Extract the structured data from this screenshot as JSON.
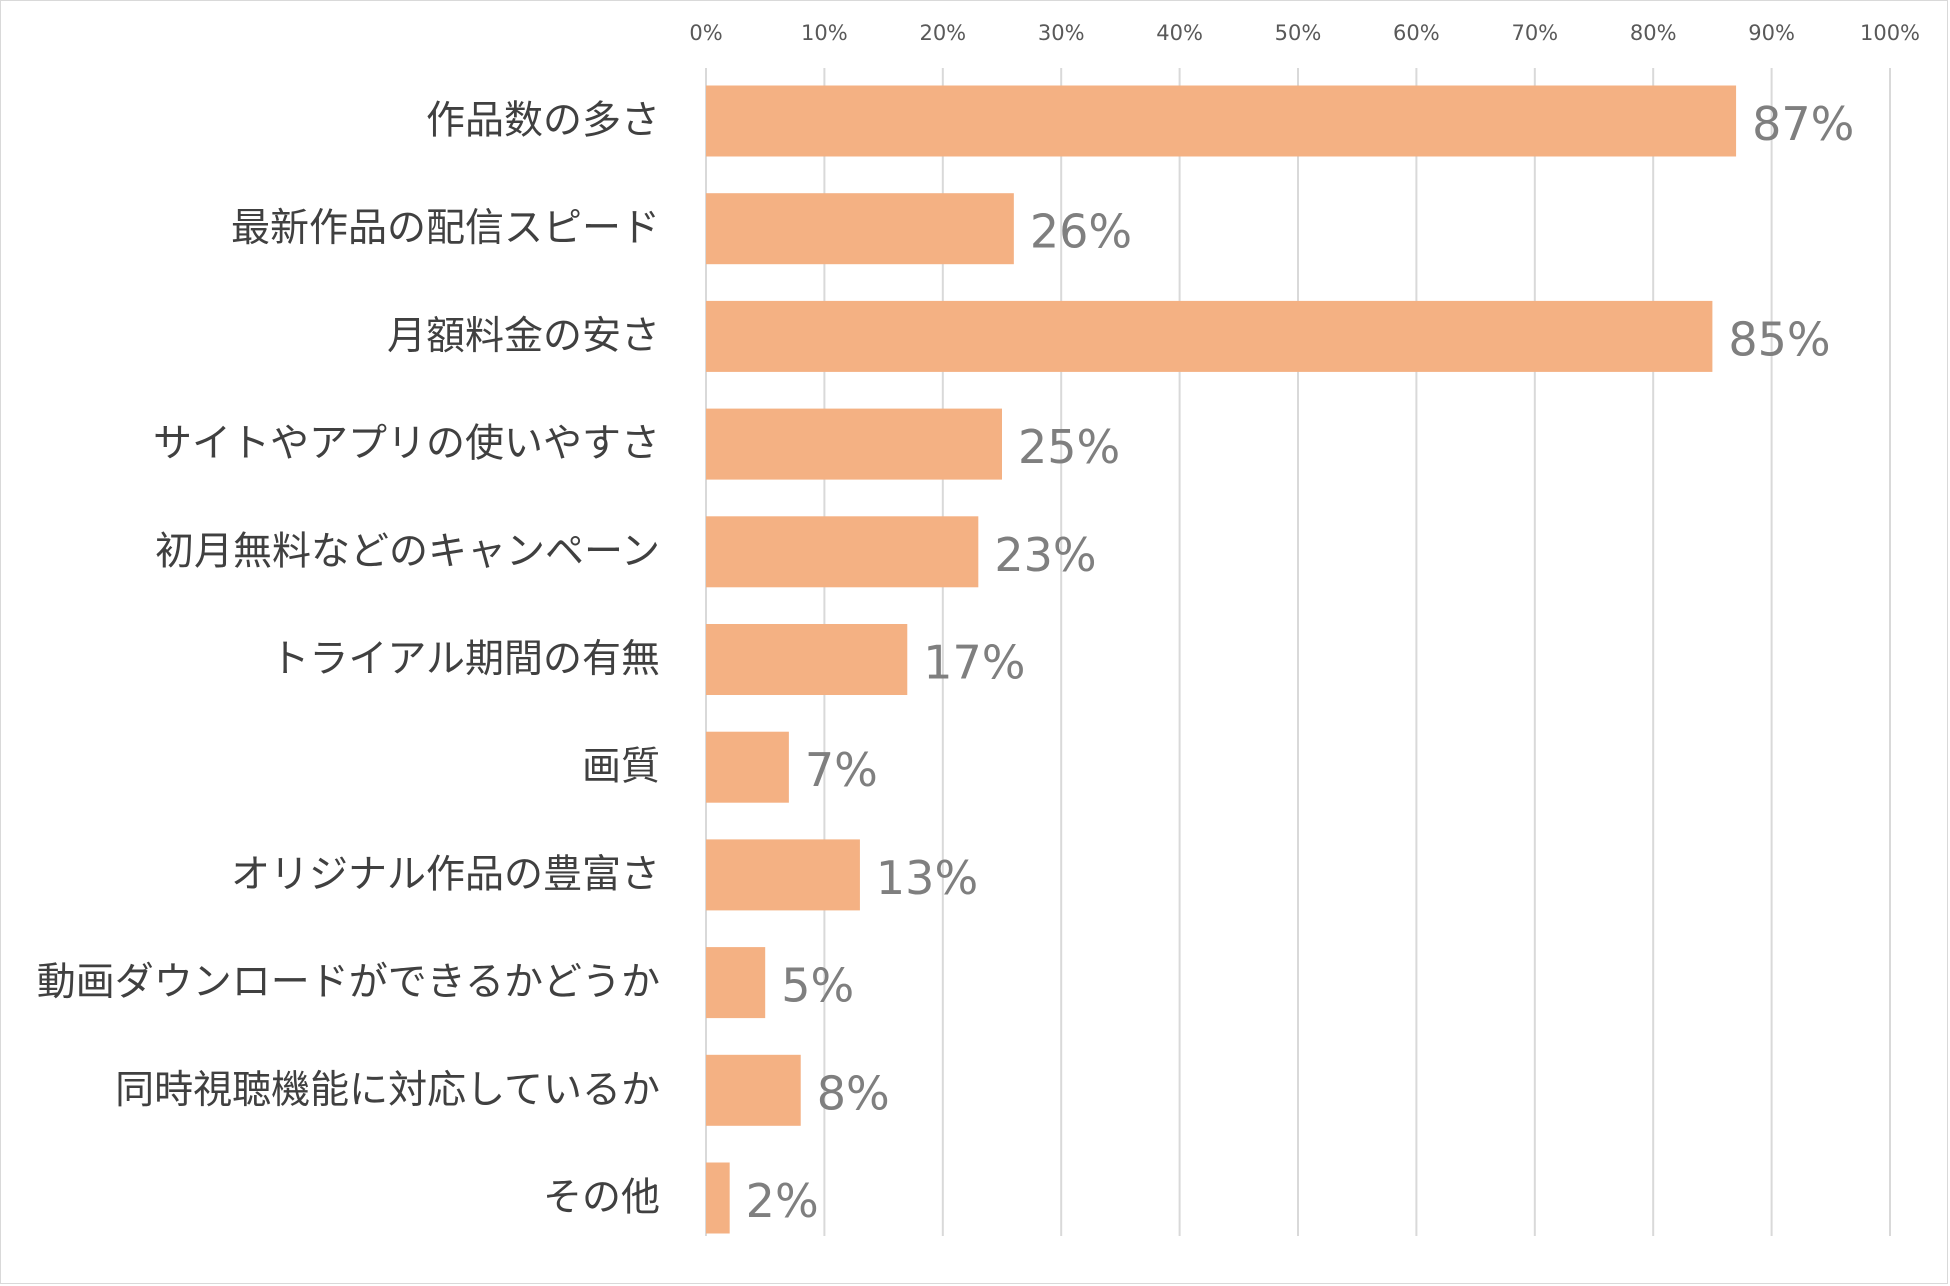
{
  "chart_data": {
    "type": "bar",
    "orientation": "horizontal",
    "categories": [
      "作品数の多さ",
      "最新作品の配信スピード",
      "月額料金の安さ",
      "サイトやアプリの使いやすさ",
      "初月無料などのキャンペーン",
      "トライアル期間の有無",
      "画質",
      "オリジナル作品の豊富さ",
      "動画ダウンロードができるかどうか",
      "同時視聴機能に対応しているか",
      "その他"
    ],
    "values": [
      87,
      26,
      85,
      25,
      23,
      17,
      7,
      13,
      5,
      8,
      2
    ],
    "data_labels": [
      "87%",
      "26%",
      "85%",
      "25%",
      "23%",
      "17%",
      "7%",
      "13%",
      "5%",
      "8%",
      "2%"
    ],
    "xlim": [
      0,
      100
    ],
    "x_ticks": [
      "0%",
      "10%",
      "20%",
      "30%",
      "40%",
      "50%",
      "60%",
      "70%",
      "80%",
      "90%",
      "100%"
    ],
    "x_axis_position": "top",
    "grid": true,
    "legend": "none",
    "bar_color": "#f4b183",
    "title": "",
    "xlabel": "",
    "ylabel": ""
  }
}
